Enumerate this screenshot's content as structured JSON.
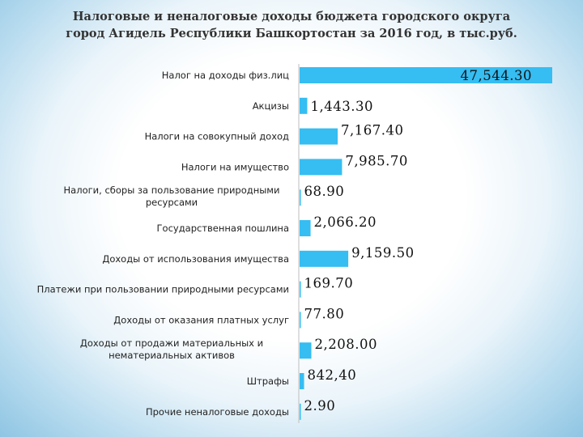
{
  "chart_data": {
    "type": "bar",
    "orientation": "horizontal",
    "title_line1": "Налоговые и неналоговые доходы бюджета городского округа",
    "title_line2": "город Агидель Республики Башкортостан за 2016 год, в тыс.руб.",
    "categories": [
      [
        "Налог на доходы физ.лиц"
      ],
      [
        "Акцизы"
      ],
      [
        "Налоги на совокупный доход"
      ],
      [
        "Налоги на имущество"
      ],
      [
        "Налоги, сборы за пользование природными",
        "ресурсами"
      ],
      [
        "Государственная пошлина"
      ],
      [
        "Доходы от использования имущества"
      ],
      [
        "Платежи при пользовании природными ресурсами"
      ],
      [
        "Доходы от оказания платных услуг"
      ],
      [
        "Доходы от продажи материальных и",
        "нематериальных активов"
      ],
      [
        "Штрафы"
      ],
      [
        "Прочие неналоговые доходы"
      ]
    ],
    "values": [
      47544.3,
      1443.3,
      7167.4,
      7985.7,
      68.9,
      2066.2,
      9159.5,
      169.7,
      77.8,
      2208.0,
      842.4,
      2.9
    ],
    "value_labels": [
      "47,544.30",
      "1,443.30",
      "7,167.40",
      "7,985.70",
      "68.90",
      "2,066.20",
      "9,159.50",
      "169.70",
      "77.80",
      "2,208.00",
      "842,40",
      "2.90"
    ],
    "bar_color": "#36bdf2",
    "xlim": [
      0,
      47544.3
    ],
    "grid": false,
    "legend": "none"
  }
}
